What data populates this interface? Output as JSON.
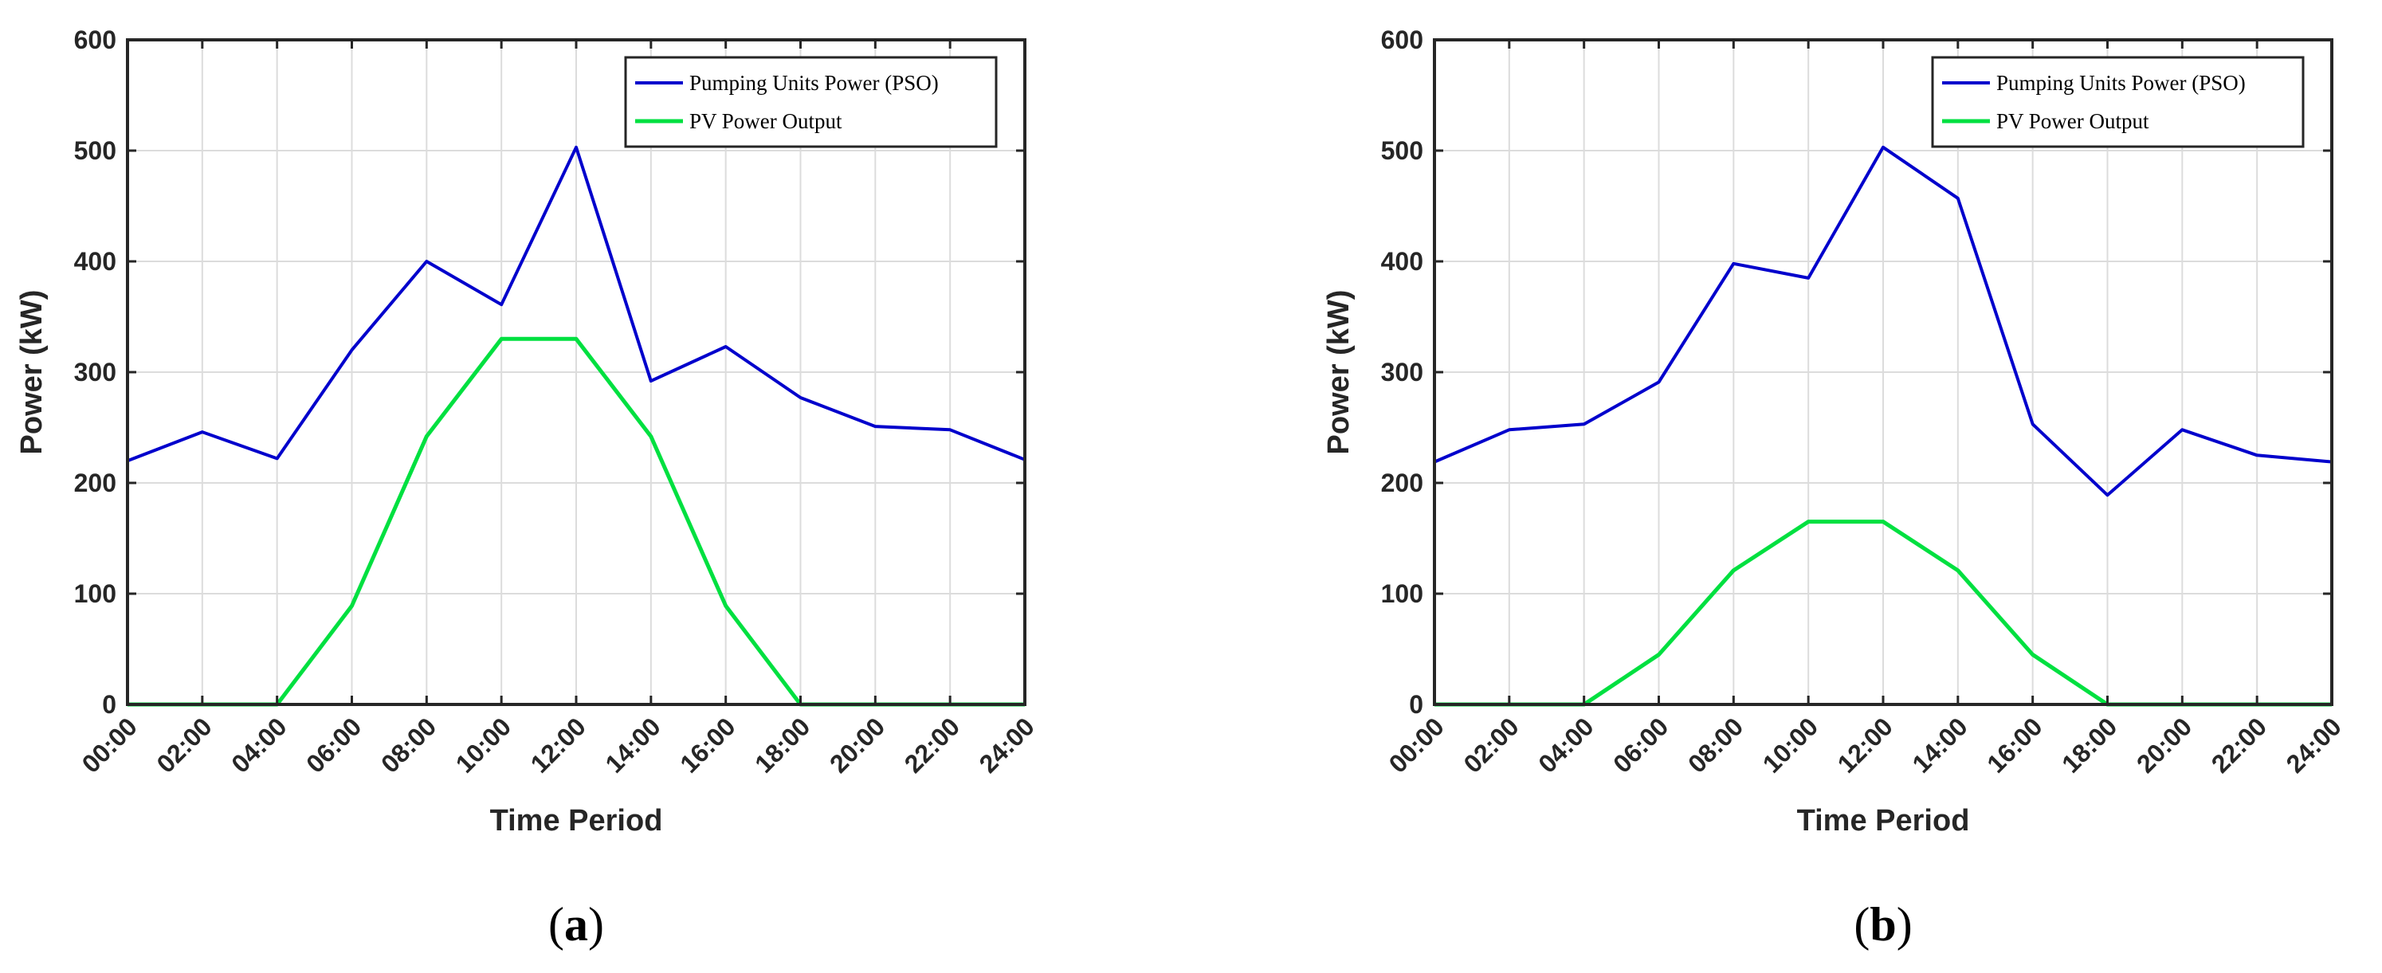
{
  "chart_data": [
    {
      "type": "line",
      "panel_label": "a",
      "xlabel": "Time Period",
      "ylabel": "Power (kW)",
      "categories": [
        "00:00",
        "02:00",
        "04:00",
        "06:00",
        "08:00",
        "10:00",
        "12:00",
        "14:00",
        "16:00",
        "18:00",
        "20:00",
        "22:00",
        "24:00"
      ],
      "yticks": [
        "0",
        "100",
        "200",
        "300",
        "400",
        "500",
        "600"
      ],
      "ylim": [
        0,
        600
      ],
      "grid": true,
      "legend_position": "top-right",
      "series": [
        {
          "name": "Pumping Units Power (PSO)",
          "color": "#0000cc",
          "values": [
            220,
            246,
            222,
            320,
            400,
            361,
            503,
            292,
            323,
            277,
            251,
            248,
            221
          ]
        },
        {
          "name": "PV Power Output",
          "color": "#00e040",
          "values": [
            0,
            0,
            0,
            89,
            242,
            330,
            330,
            242,
            89,
            0,
            0,
            0,
            0
          ]
        }
      ]
    },
    {
      "type": "line",
      "panel_label": "b",
      "xlabel": "Time Period",
      "ylabel": "Power (kW)",
      "categories": [
        "00:00",
        "02:00",
        "04:00",
        "06:00",
        "08:00",
        "10:00",
        "12:00",
        "14:00",
        "16:00",
        "18:00",
        "20:00",
        "22:00",
        "24:00"
      ],
      "yticks": [
        "0",
        "100",
        "200",
        "300",
        "400",
        "500",
        "600"
      ],
      "ylim": [
        0,
        600
      ],
      "grid": true,
      "legend_position": "top-right",
      "series": [
        {
          "name": "Pumping Units Power (PSO)",
          "color": "#0000cc",
          "values": [
            219,
            248,
            253,
            291,
            398,
            385,
            503,
            457,
            253,
            189,
            248,
            225,
            219
          ]
        },
        {
          "name": "PV Power Output",
          "color": "#00e040",
          "values": [
            0,
            0,
            0,
            45,
            121,
            165,
            165,
            121,
            45,
            0,
            0,
            0,
            0
          ]
        }
      ]
    }
  ]
}
